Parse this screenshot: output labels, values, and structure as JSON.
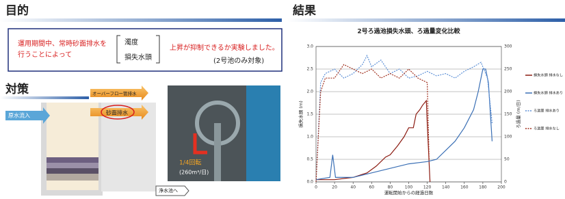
{
  "purpose": {
    "title": "目的",
    "line_1": "運用期間中、常時砂面排水を",
    "line_2": "行うことによって",
    "items": [
      "濁度",
      "損失水頭"
    ],
    "result": "上昇が抑制できるか実験しました。",
    "note": "(2号池のみ対象)"
  },
  "measures": {
    "title": "対策",
    "inflow": "原水流入",
    "overflow": "オーバーフロー管排水",
    "drain": "砂面排水",
    "outflow": "浄水池へ",
    "rotation": "1/4回転",
    "flow": "(260m³/日)"
  },
  "results_title": "結果",
  "chart_data": {
    "type": "line",
    "title": "2号ろ過池損失水頭、ろ過量変化比較",
    "x_label": "運転開始からの経過日数",
    "y_label": "損失水頭 (m)",
    "y2_label": "ろ過量 (m/日)",
    "xlim": [
      0,
      200
    ],
    "xticks": [
      0,
      20,
      40,
      60,
      80,
      100,
      120,
      140,
      160,
      180,
      200
    ],
    "ylim": [
      0,
      3
    ],
    "yticks": [
      {
        "value": 0,
        "label": "0.0"
      },
      0.5,
      {
        "value": 1,
        "label": "1.0"
      },
      1.5,
      {
        "value": 2,
        "label": "2.0"
      },
      2.5,
      {
        "value": 3,
        "label": "3.0"
      }
    ],
    "y2lim": [
      0,
      300
    ],
    "y2ticks": [
      0,
      50,
      100,
      150,
      200,
      250,
      300
    ],
    "grid": true,
    "legend": "right",
    "series": [
      {
        "name": "損失水頭 排水なし",
        "color": "#8b1a10",
        "dashed": false,
        "x": [
          0,
          20,
          40,
          55,
          65,
          75,
          80,
          88,
          95,
          100,
          105,
          108,
          112,
          115,
          119,
          120,
          123
        ],
        "values": [
          0.05,
          0.05,
          0.1,
          0.2,
          0.35,
          0.55,
          0.6,
          0.8,
          1.0,
          1.2,
          1.2,
          1.5,
          1.6,
          1.7,
          1.8,
          1.3,
          0
        ]
      },
      {
        "name": "損失水頭 排水あり",
        "color": "#3a6fb5",
        "dashed": false,
        "x": [
          0,
          15,
          18,
          21,
          40,
          60,
          80,
          100,
          120,
          130,
          140,
          150,
          160,
          170,
          175,
          180,
          183,
          186,
          190
        ],
        "values": [
          0.05,
          0.1,
          0.6,
          0.1,
          0.1,
          0.2,
          0.3,
          0.4,
          0.45,
          0.5,
          0.7,
          0.9,
          1.2,
          1.6,
          2.0,
          2.5,
          2.5,
          2.2,
          0.9
        ]
      },
      {
        "name": "ろ過量 排水あり",
        "color": "#5b8fd6",
        "dashed": true,
        "axis": "y2",
        "x": [
          0,
          5,
          10,
          20,
          30,
          40,
          50,
          55,
          60,
          70,
          80,
          90,
          100,
          110,
          120,
          130,
          140,
          150,
          160,
          170,
          178,
          185,
          190
        ],
        "values": [
          0,
          220,
          240,
          250,
          230,
          240,
          260,
          280,
          255,
          270,
          240,
          250,
          230,
          235,
          245,
          235,
          240,
          230,
          245,
          255,
          265,
          230,
          130
        ]
      },
      {
        "name": "ろ過量 排水なし",
        "color": "#a0301e",
        "dashed": true,
        "axis": "y2",
        "x": [
          0,
          5,
          10,
          20,
          30,
          40,
          50,
          60,
          70,
          80,
          90,
          100,
          110,
          120,
          122
        ],
        "values": [
          0,
          200,
          230,
          230,
          260,
          250,
          240,
          250,
          230,
          240,
          230,
          250,
          230,
          220,
          50
        ]
      }
    ]
  }
}
